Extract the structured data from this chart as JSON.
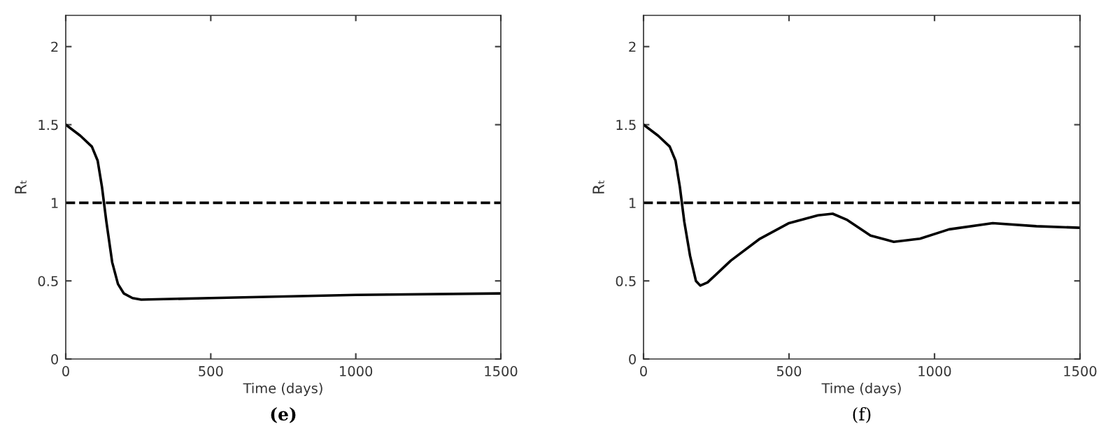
{
  "chart_data": [
    {
      "type": "line",
      "xlabel": "Time (days)",
      "ylabel": "Rₜ",
      "annotations": [
        "(e)"
      ],
      "xlim": [
        0,
        1500
      ],
      "ylim": [
        0,
        2.2
      ],
      "xticks": [
        0,
        500,
        1000,
        1500
      ],
      "yticks": [
        0,
        0.5,
        1,
        1.5,
        2
      ],
      "grid": false,
      "legend": false,
      "series": [
        {
          "color": "#000000",
          "line_style": "solid",
          "x": [
            0,
            50,
            90,
            110,
            125,
            140,
            160,
            180,
            200,
            230,
            260,
            500,
            1000,
            1500
          ],
          "values": [
            1.5,
            1.43,
            1.36,
            1.27,
            1.1,
            0.88,
            0.62,
            0.48,
            0.42,
            0.39,
            0.38,
            0.39,
            0.41,
            0.42
          ]
        }
      ],
      "ref_lines": [
        {
          "axis": "y",
          "value": 1,
          "color": "#000000",
          "line_style": "dashed"
        }
      ]
    },
    {
      "type": "line",
      "xlabel": "Time (days)",
      "ylabel": "Rₜ",
      "annotations": [
        "(f)"
      ],
      "xlim": [
        0,
        1500
      ],
      "ylim": [
        0,
        2.2
      ],
      "xticks": [
        0,
        500,
        1000,
        1500
      ],
      "yticks": [
        0,
        0.5,
        1,
        1.5,
        2
      ],
      "grid": false,
      "legend": false,
      "series": [
        {
          "color": "#000000",
          "line_style": "solid",
          "x": [
            0,
            50,
            90,
            110,
            125,
            140,
            160,
            180,
            195,
            220,
            300,
            400,
            500,
            600,
            650,
            700,
            780,
            860,
            950,
            1050,
            1200,
            1350,
            1500
          ],
          "values": [
            1.5,
            1.43,
            1.36,
            1.27,
            1.1,
            0.88,
            0.66,
            0.5,
            0.47,
            0.49,
            0.63,
            0.77,
            0.87,
            0.92,
            0.93,
            0.89,
            0.79,
            0.75,
            0.77,
            0.83,
            0.87,
            0.85,
            0.84
          ]
        }
      ],
      "ref_lines": [
        {
          "axis": "y",
          "value": 1,
          "color": "#000000",
          "line_style": "dashed"
        }
      ]
    }
  ]
}
